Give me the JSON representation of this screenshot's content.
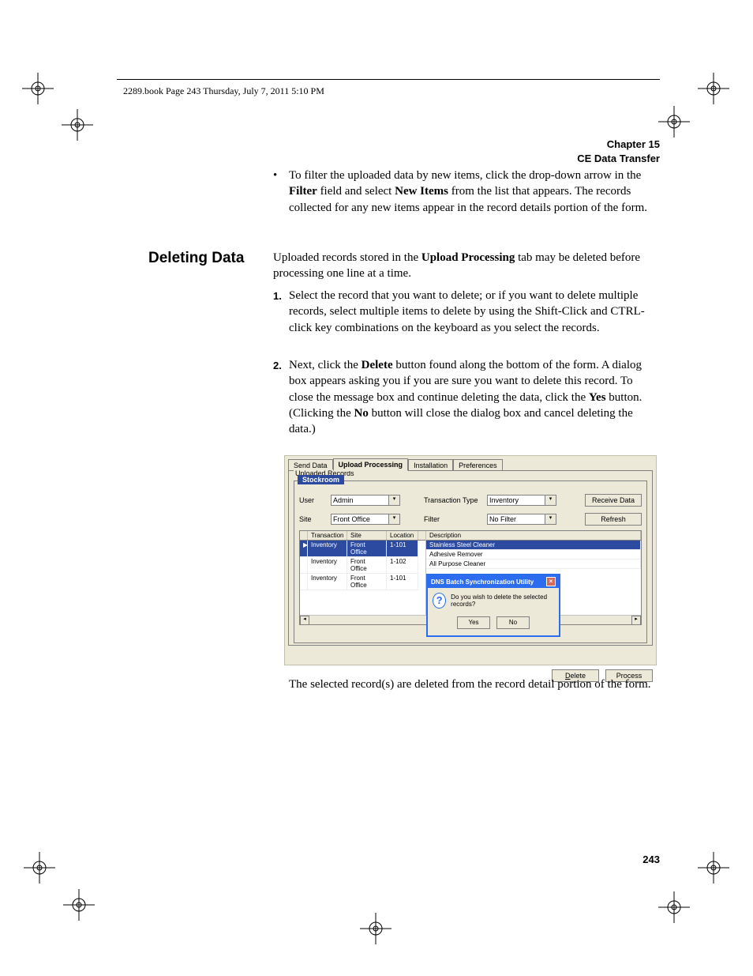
{
  "header": {
    "book_line": "2289.book  Page 243  Thursday, July 7, 2011  5:10 PM",
    "chapter_label": "Chapter 15",
    "chapter_title": "CE Data Transfer"
  },
  "bullet": {
    "prefix": "To filter the uploaded data by new items, click the drop-down arrow in the ",
    "bold1": "Filter",
    "mid": " field and select ",
    "bold2": "New Items",
    "suffix": " from the list that appears. The records collected for any new items appear in the record details portion of the form."
  },
  "section": {
    "heading": "Deleting Data",
    "intro_a": "Uploaded records stored in the ",
    "intro_bold": "Upload Processing",
    "intro_b": " tab may be deleted before processing one line at a time."
  },
  "steps": {
    "one": "Select the record that you want to delete; or if you want to delete multiple records, select multiple items to delete by using the Shift-Click and CTRL-click key combinations on the keyboard as you select the records.",
    "two_a": "Next, click the ",
    "two_delete": "Delete",
    "two_b": " button found along the bottom of the form. A dialog box appears asking you if you are sure you want to delete this record. To close the message box and continue deleting the data, click the ",
    "two_yes": "Yes",
    "two_c": " button. (Clicking the ",
    "two_no": "No",
    "two_d": " button will close the dialog box and cancel deleting the data.)"
  },
  "app": {
    "tabs": [
      "Send Data",
      "Upload Processing",
      "Installation",
      "Preferences"
    ],
    "active_tab_index": 1,
    "group_label": "Uploaded Records",
    "stockroom_label": "Stockroom",
    "labels": {
      "user": "User",
      "site": "Site",
      "txn_type": "Transaction Type",
      "filter": "Filter"
    },
    "values": {
      "user": "Admin",
      "site": "Front Office",
      "txn_type": "Inventory",
      "filter": "No Filter"
    },
    "buttons": {
      "receive": "Receive Data",
      "refresh": "Refresh",
      "delete": "Delete",
      "process": "Process"
    },
    "columns_left": [
      "Transaction",
      "Site",
      "Location"
    ],
    "columns_right": [
      "Description"
    ],
    "rows_left": [
      {
        "txn": "Inventory",
        "site": "Front Office",
        "loc": "1-101",
        "selected": true
      },
      {
        "txn": "Inventory",
        "site": "Front Office",
        "loc": "1-102",
        "selected": false
      },
      {
        "txn": "Inventory",
        "site": "Front Office",
        "loc": "1-101",
        "selected": false
      }
    ],
    "rows_right": [
      {
        "desc": "Stainless Steel Cleaner",
        "selected": true
      },
      {
        "desc": "Adhesive Remover",
        "selected": false
      },
      {
        "desc": "All Purpose Cleaner",
        "selected": false
      }
    ],
    "dialog": {
      "title": "DNS Batch Synchronization Utility",
      "message": "Do you wish to delete the selected records?",
      "yes": "Yes",
      "no": "No"
    },
    "colors": {
      "panel_bg": "#ece9d8",
      "accent": "#2c6df0",
      "sel_bg": "#2c4aa0"
    }
  },
  "after_img": "The selected record(s) are deleted from the record detail portion of the form.",
  "page_number": "243"
}
